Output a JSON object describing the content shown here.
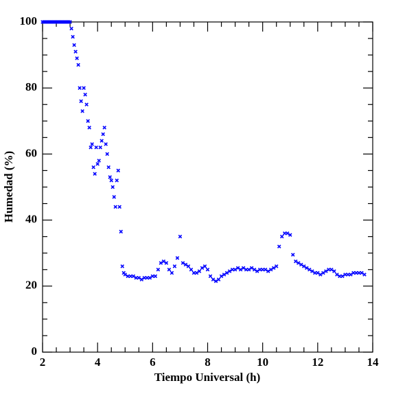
{
  "chart_data": {
    "type": "scatter",
    "xlabel": "Tiempo Universal (h)",
    "ylabel": "Humedad (%)",
    "xlim": [
      2,
      14
    ],
    "ylim": [
      0,
      100
    ],
    "xticks": [
      2,
      4,
      6,
      8,
      10,
      12,
      14
    ],
    "yticks": [
      0,
      20,
      40,
      60,
      80,
      100
    ],
    "xminorticks": [
      2.5,
      3,
      3.5,
      4.5,
      5,
      5.5,
      6.5,
      7,
      7.5,
      8.5,
      9,
      9.5,
      10.5,
      11,
      11.5,
      12.5,
      13,
      13.5
    ],
    "yminorticks": [
      5,
      10,
      15,
      25,
      30,
      35,
      45,
      50,
      55,
      65,
      70,
      75,
      85,
      90,
      95
    ],
    "color": "#0000ff",
    "x": [
      2,
      2.05,
      2.1,
      2.15,
      2.2,
      2.25,
      2.3,
      2.35,
      2.4,
      2.45,
      2.5,
      2.55,
      2.6,
      2.65,
      2.7,
      2.75,
      2.8,
      2.85,
      2.9,
      2.95,
      3,
      3.05,
      3.1,
      3.15,
      3.2,
      3.25,
      3.3,
      3.35,
      3.4,
      3.45,
      3.5,
      3.55,
      3.6,
      3.65,
      3.7,
      3.75,
      3.8,
      3.85,
      3.9,
      3.95,
      4,
      4.05,
      4.1,
      4.15,
      4.2,
      4.25,
      4.3,
      4.35,
      4.4,
      4.45,
      4.5,
      4.55,
      4.6,
      4.65,
      4.7,
      4.75,
      4.8,
      4.85,
      4.9,
      4.95,
      5,
      5.1,
      5.2,
      5.3,
      5.4,
      5.5,
      5.6,
      5.7,
      5.8,
      5.9,
      6,
      6.1,
      6.2,
      6.3,
      6.4,
      6.5,
      6.6,
      6.7,
      6.8,
      6.9,
      7,
      7.1,
      7.2,
      7.3,
      7.4,
      7.5,
      7.6,
      7.7,
      7.8,
      7.9,
      8,
      8.1,
      8.2,
      8.3,
      8.4,
      8.5,
      8.6,
      8.7,
      8.8,
      8.9,
      9,
      9.1,
      9.2,
      9.3,
      9.4,
      9.5,
      9.6,
      9.7,
      9.8,
      9.9,
      10,
      10.1,
      10.2,
      10.3,
      10.4,
      10.5,
      10.6,
      10.7,
      10.8,
      10.9,
      11,
      11.1,
      11.2,
      11.3,
      11.4,
      11.5,
      11.6,
      11.7,
      11.8,
      11.9,
      12,
      12.1,
      12.2,
      12.3,
      12.4,
      12.5,
      12.6,
      12.7,
      12.8,
      12.9,
      13,
      13.1,
      13.2,
      13.3,
      13.4,
      13.5,
      13.6,
      13.7
    ],
    "values": [
      100,
      100,
      100,
      100,
      100,
      100,
      100,
      100,
      100,
      100,
      100,
      100,
      100,
      100,
      100,
      100,
      100,
      100,
      100,
      100,
      100,
      98,
      95.5,
      93,
      91,
      89,
      87,
      80,
      76,
      73,
      80,
      78,
      75,
      70,
      68,
      62,
      63,
      56,
      54,
      62,
      57,
      58,
      62,
      64,
      66,
      68,
      63,
      60,
      56,
      53,
      52,
      50,
      47,
      44,
      52,
      55,
      44,
      36.5,
      26,
      24,
      23.5,
      23,
      23,
      23,
      22.5,
      22.5,
      22,
      22.5,
      22.5,
      22.5,
      23,
      23,
      25,
      27,
      27.5,
      27,
      25,
      24,
      26,
      28.5,
      35,
      27,
      26.5,
      26,
      25,
      24,
      24,
      24.5,
      25.5,
      26,
      25,
      23,
      22,
      21.5,
      22,
      23,
      23.5,
      24,
      24.5,
      25,
      25,
      25.5,
      25,
      25.5,
      25,
      25,
      25.5,
      25,
      24.5,
      25,
      25,
      25,
      24.5,
      25,
      25.5,
      26,
      32,
      35,
      36,
      36,
      35.5,
      29.5,
      27.5,
      27,
      26.5,
      26,
      25.5,
      25,
      24.5,
      24,
      24,
      23.5,
      24,
      24.5,
      25,
      25,
      24.5,
      23.5,
      23,
      23,
      23.5,
      23.5,
      23.5,
      24,
      24,
      24,
      24,
      23.5
    ]
  }
}
